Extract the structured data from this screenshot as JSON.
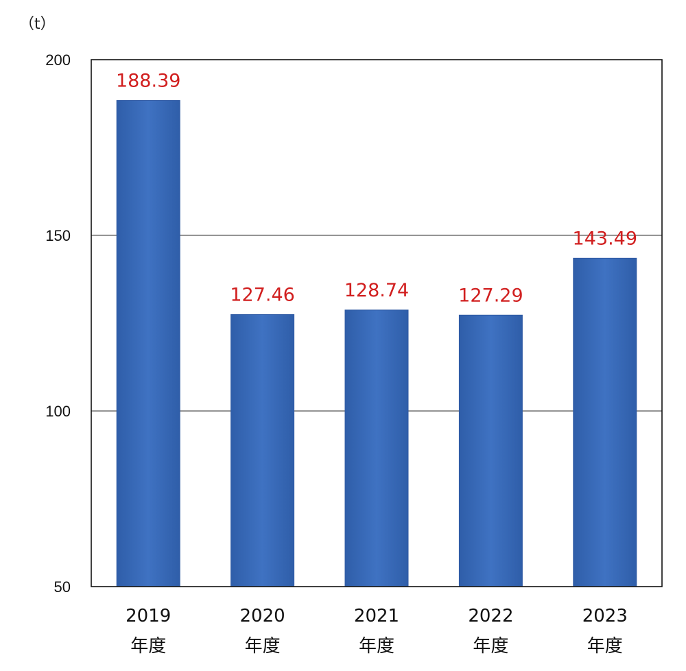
{
  "chart_data": {
    "type": "bar",
    "unit": "（t）",
    "categories": [
      [
        "2019",
        "年度"
      ],
      [
        "2020",
        "年度"
      ],
      [
        "2021",
        "年度"
      ],
      [
        "2022",
        "年度"
      ],
      [
        "2023",
        "年度"
      ]
    ],
    "values": [
      188.39,
      127.46,
      128.74,
      127.29,
      143.49
    ],
    "data_labels": [
      "188.39",
      "127.46",
      "128.74",
      "127.29",
      "143.49"
    ],
    "ylim": [
      50,
      200
    ],
    "yticks": [
      50,
      100,
      150,
      200
    ],
    "title": "",
    "xlabel": "",
    "ylabel": "",
    "grid": true,
    "legend": "none",
    "colors": {
      "bar": "#3a6bbb",
      "bar_edge": "#2f5aa3",
      "data_label": "#d11f1f",
      "grid": "#555555",
      "axis": "#111111"
    }
  }
}
